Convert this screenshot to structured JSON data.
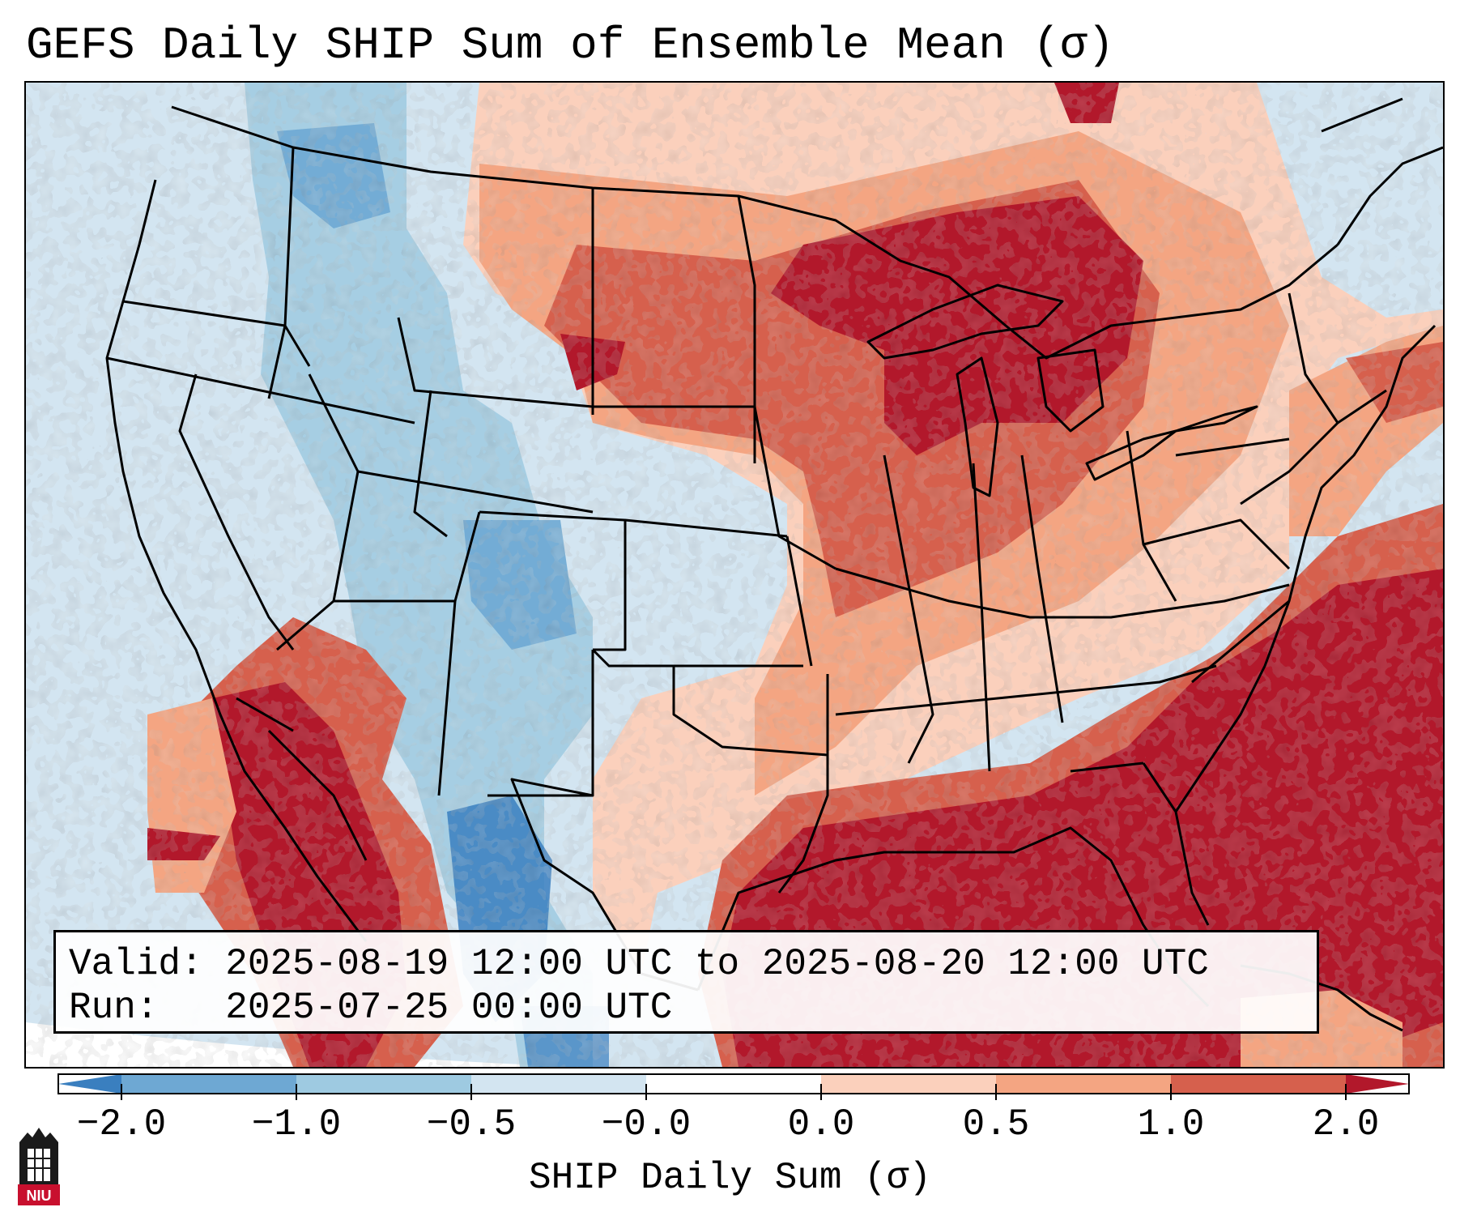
{
  "title": "GEFS Daily SHIP Sum of Ensemble Mean (σ)",
  "info": {
    "valid": "Valid: 2025-08-19 12:00 UTC to 2025-08-20 12:00 UTC",
    "run": "Run:   2025-07-25 00:00 UTC"
  },
  "colorbar": {
    "label": "SHIP Daily Sum (σ)",
    "ticks": [
      "−2.0",
      "−1.0",
      "−0.5",
      "−0.0",
      "0.0",
      "0.5",
      "1.0",
      "2.0"
    ],
    "colors": [
      "#3a7fbf",
      "#6ea8d3",
      "#9ecae1",
      "#d3e5f1",
      "#ffffff",
      "#fbd0bc",
      "#f4a582",
      "#d6604d",
      "#b2182b"
    ]
  },
  "logo": {
    "text": "NIU"
  }
}
